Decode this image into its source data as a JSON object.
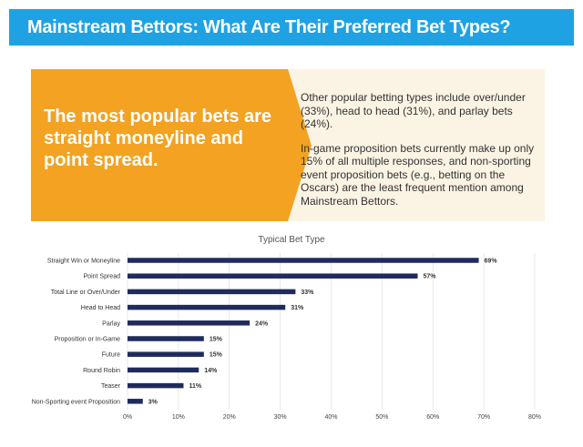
{
  "banner": {
    "title": "Mainstream Bettors: What Are Their Preferred Bet Types?"
  },
  "callout": {
    "headline": "The most popular bets are straight moneyline and point spread.",
    "paragraph1": "Other popular betting types include over/under (33%), head to head (31%), and parlay bets (24%).",
    "paragraph2": "In-game proposition bets currently make up only 15% of all multiple responses, and non-sporting event proposition bets (e.g., betting on the Oscars) are the least frequent mention among Mainstream Bettors."
  },
  "colors": {
    "banner": "#1ea2e3",
    "callout_accent": "#f3a221",
    "callout_bg": "#fbf3e4",
    "bar": "#1f2b5c"
  },
  "chart_data": {
    "type": "bar",
    "orientation": "horizontal",
    "title": "Typical Bet Type",
    "categories": [
      "Straight Win or Moneyline",
      "Point Spread",
      "Total Line or Over/Under",
      "Head to Head",
      "Parlay",
      "Proposition or In-Game",
      "Future",
      "Round Robin",
      "Teaser",
      "Non-Sporting event Proposition"
    ],
    "values": [
      69,
      57,
      33,
      31,
      24,
      15,
      15,
      14,
      11,
      3
    ],
    "value_labels": [
      "69%",
      "57%",
      "33%",
      "31%",
      "24%",
      "15%",
      "15%",
      "14%",
      "11%",
      "3%"
    ],
    "xlim": [
      0,
      80
    ],
    "x_ticks": [
      0,
      10,
      20,
      30,
      40,
      50,
      60,
      70,
      80
    ],
    "x_tick_labels": [
      "0%",
      "10%",
      "20%",
      "30%",
      "40%",
      "50%",
      "60%",
      "70%",
      "80%"
    ],
    "grid": true,
    "legend": "none"
  }
}
